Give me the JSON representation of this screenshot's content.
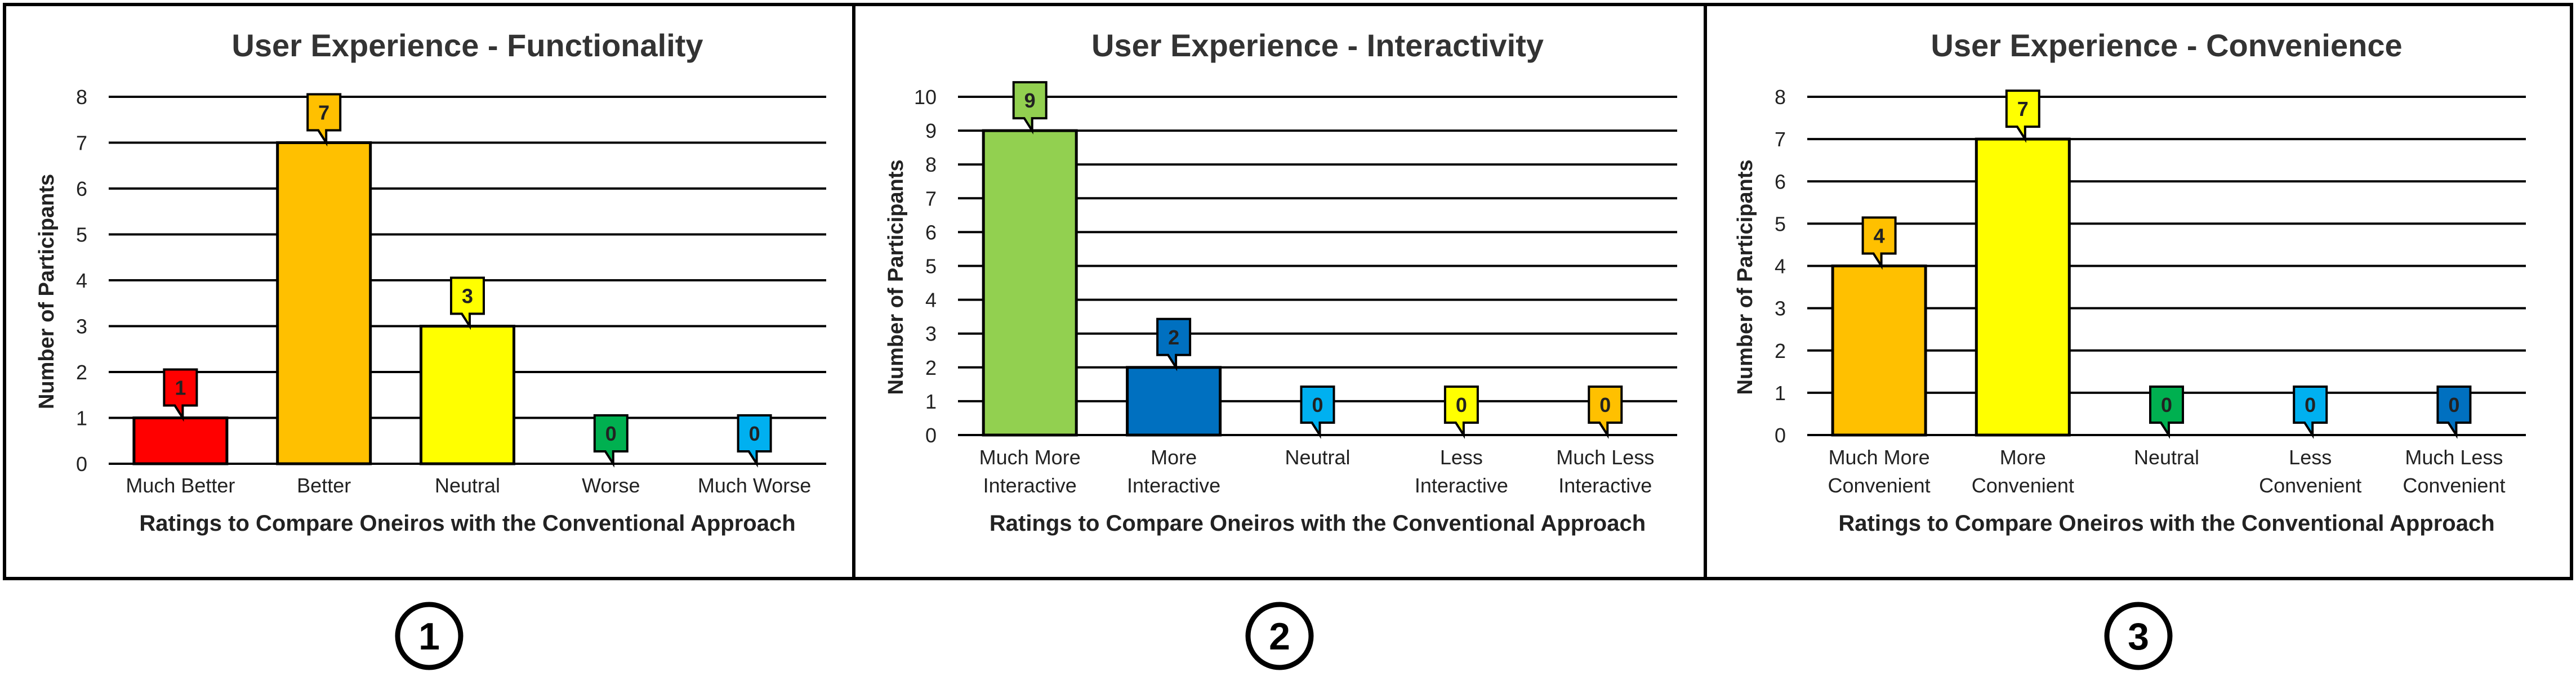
{
  "panel_numbers": [
    "1",
    "2",
    "3"
  ],
  "chart_data": [
    {
      "type": "bar",
      "title": "User Experience - Functionality",
      "xlabel": "Ratings to Compare Oneiros with the Conventional Approach",
      "ylabel": "Number of Participants",
      "ylim": [
        0,
        8
      ],
      "yticks": [
        0,
        1,
        2,
        3,
        4,
        5,
        6,
        7,
        8
      ],
      "grid": true,
      "categories": [
        [
          "Much Better"
        ],
        [
          "Better"
        ],
        [
          "Neutral"
        ],
        [
          "Worse"
        ],
        [
          "Much Worse"
        ]
      ],
      "values": [
        1,
        7,
        3,
        0,
        0
      ],
      "colors": [
        "#ff0000",
        "#ffc000",
        "#ffff00",
        "#00b050",
        "#00b0f0"
      ]
    },
    {
      "type": "bar",
      "title": "User Experience - Interactivity",
      "xlabel": "Ratings to Compare Oneiros with the Conventional Approach",
      "ylabel": "Number of Participants",
      "ylim": [
        0,
        10
      ],
      "yticks": [
        0,
        1,
        2,
        3,
        4,
        5,
        6,
        7,
        8,
        9,
        10
      ],
      "grid": true,
      "categories": [
        [
          "Much More",
          "Interactive"
        ],
        [
          "More",
          "Interactive"
        ],
        [
          "Neutral"
        ],
        [
          "Less",
          "Interactive"
        ],
        [
          "Much Less",
          "Interactive"
        ]
      ],
      "values": [
        9,
        2,
        0,
        0,
        0
      ],
      "colors": [
        "#92d050",
        "#0070c0",
        "#00b0f0",
        "#ffff00",
        "#ffc000"
      ]
    },
    {
      "type": "bar",
      "title": "User Experience - Convenience",
      "xlabel": "Ratings to Compare Oneiros with the Conventional Approach",
      "ylabel": "Number of Participants",
      "ylim": [
        0,
        8
      ],
      "yticks": [
        0,
        1,
        2,
        3,
        4,
        5,
        6,
        7,
        8
      ],
      "grid": true,
      "categories": [
        [
          "Much More",
          "Convenient"
        ],
        [
          "More",
          "Convenient"
        ],
        [
          "Neutral"
        ],
        [
          "Less",
          "Convenient"
        ],
        [
          "Much Less",
          "Convenient"
        ]
      ],
      "values": [
        4,
        7,
        0,
        0,
        0
      ],
      "colors": [
        "#ffc000",
        "#ffff00",
        "#00b050",
        "#00b0f0",
        "#0070c0"
      ]
    }
  ]
}
